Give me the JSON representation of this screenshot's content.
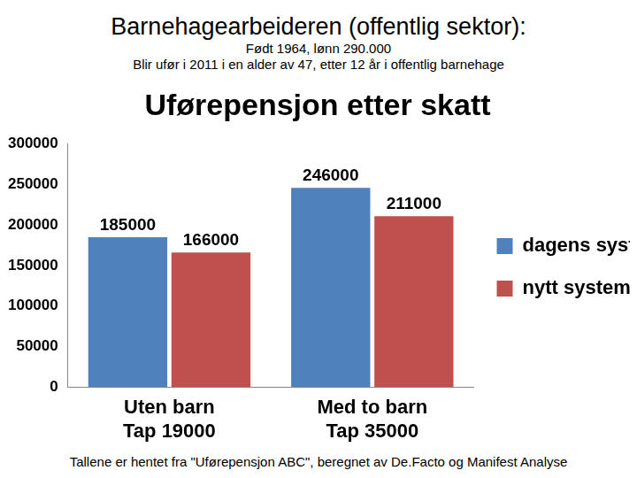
{
  "header": {
    "title": "Barnehagearbeideren (offentlig sektor):",
    "lines": [
      "Født 1964, lønn 290.000",
      "Blir ufør i 2011 i en alder av 47, etter 12 år  i offentlig barnehage"
    ]
  },
  "chart_data": {
    "type": "bar",
    "title": "Uførepensjon etter skatt",
    "categories": [
      [
        "Uten barn",
        "Tap 19000"
      ],
      [
        "Med to barn",
        "Tap 35000"
      ]
    ],
    "series": [
      {
        "name": "dagens system",
        "color": "#4f81bd",
        "values": [
          185000,
          246000
        ]
      },
      {
        "name": "nytt system",
        "color": "#c0504d",
        "values": [
          166000,
          211000
        ]
      }
    ],
    "ylim": [
      0,
      300000
    ],
    "yticks": [
      0,
      50000,
      100000,
      150000,
      200000,
      250000,
      300000
    ],
    "grid": false,
    "legend": "right",
    "data_labels": true
  },
  "footer": "Tallene er hentet fra \"Uførepensjon ABC\", beregnet av De.Facto og Manifest Analyse"
}
